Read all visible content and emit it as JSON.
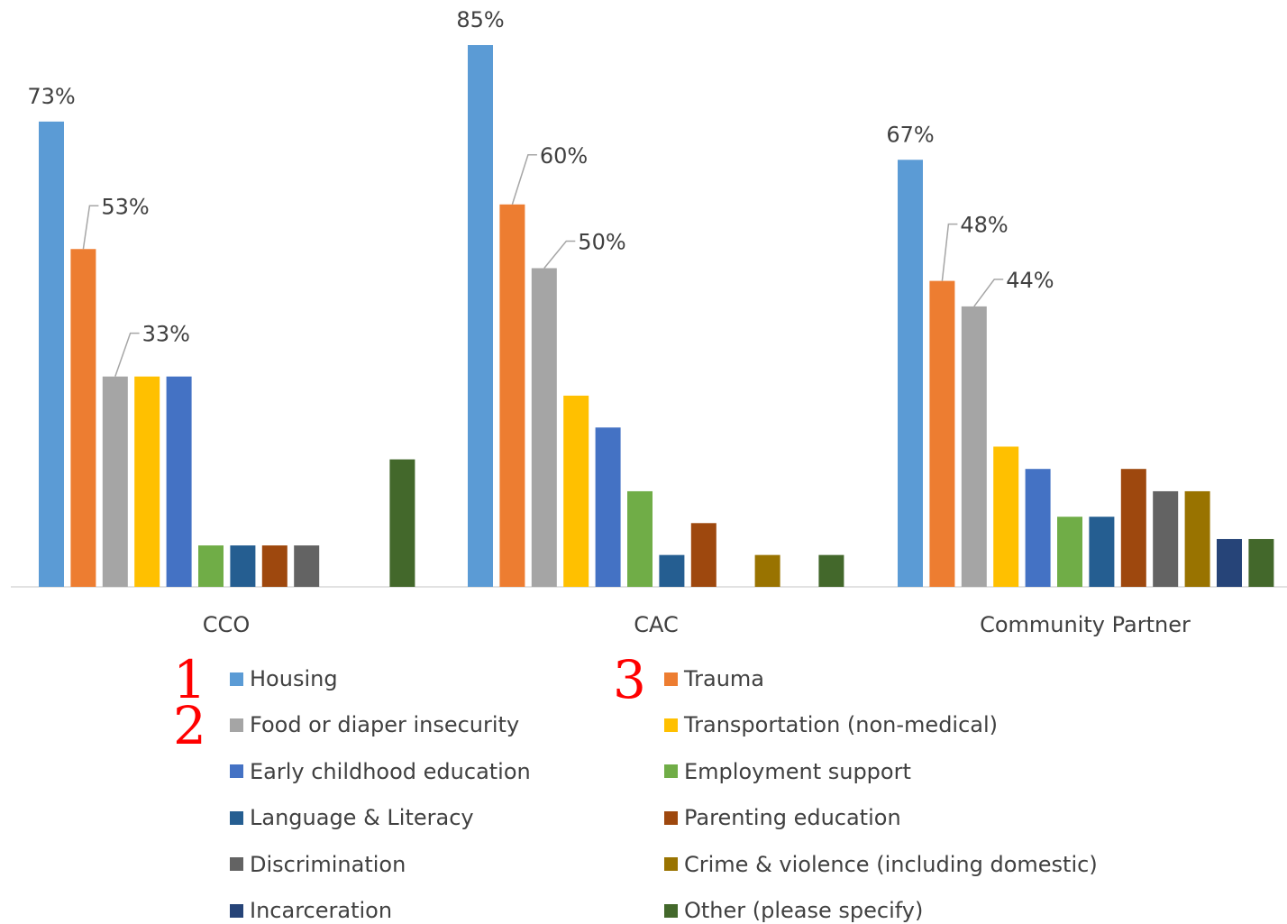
{
  "chart_data": {
    "type": "bar",
    "categories": [
      "CCO",
      "CAC",
      "Community Partner"
    ],
    "series": [
      {
        "name": "Housing",
        "color": "#5b9bd5",
        "values": [
          73,
          85,
          67
        ]
      },
      {
        "name": "Trauma",
        "color": "#ed7d31",
        "values": [
          53,
          60,
          48
        ]
      },
      {
        "name": "Food or diaper insecurity",
        "color": "#a5a5a5",
        "values": [
          33,
          50,
          44
        ]
      },
      {
        "name": "Transportation (non-medical)",
        "color": "#ffc000",
        "values": [
          33,
          30,
          22
        ]
      },
      {
        "name": "Early childhood education",
        "color": "#4472c4",
        "values": [
          33,
          25,
          18.5
        ]
      },
      {
        "name": "Employment support",
        "color": "#70ad47",
        "values": [
          6.5,
          15,
          11
        ]
      },
      {
        "name": "Language & Literacy",
        "color": "#255e91",
        "values": [
          6.5,
          5,
          11
        ]
      },
      {
        "name": "Parenting education",
        "color": "#9e480e",
        "values": [
          6.5,
          10,
          18.5
        ]
      },
      {
        "name": "Discrimination",
        "color": "#636363",
        "values": [
          6.5,
          0,
          15
        ]
      },
      {
        "name": "Crime & violence (including domestic)",
        "color": "#997300",
        "values": [
          0,
          5,
          15
        ]
      },
      {
        "name": "Incarceration",
        "color": "#264478",
        "values": [
          0,
          0,
          7.5
        ]
      },
      {
        "name": "Other (please specify)",
        "color": "#43682b",
        "values": [
          20,
          5,
          7.5
        ]
      }
    ],
    "data_labels": [
      {
        "category": 0,
        "series": 0,
        "text": "73%"
      },
      {
        "category": 0,
        "series": 1,
        "text": "53%"
      },
      {
        "category": 0,
        "series": 2,
        "text": "33%"
      },
      {
        "category": 1,
        "series": 0,
        "text": "85%"
      },
      {
        "category": 1,
        "series": 1,
        "text": "60%"
      },
      {
        "category": 1,
        "series": 2,
        "text": "50%"
      },
      {
        "category": 2,
        "series": 0,
        "text": "67%"
      },
      {
        "category": 2,
        "series": 1,
        "text": "48%"
      },
      {
        "category": 2,
        "series": 2,
        "text": "44%"
      }
    ],
    "title": "",
    "xlabel": "",
    "ylabel": "",
    "ylim": [
      0,
      85
    ],
    "grid": false,
    "legend_position": "bottom"
  },
  "rank_marks": [
    {
      "text": "1",
      "series": 0
    },
    {
      "text": "2",
      "series": 2
    },
    {
      "text": "3",
      "series": 1
    }
  ],
  "rank_color": "#ff0000"
}
